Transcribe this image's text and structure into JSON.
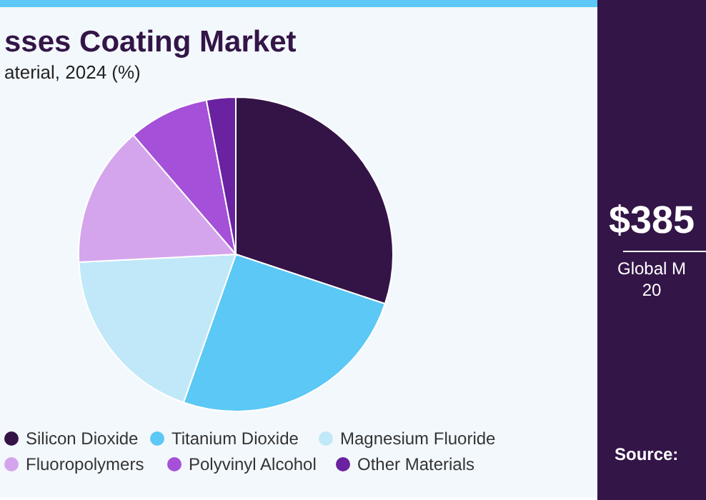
{
  "chart_data": {
    "type": "pie",
    "title": "sses Coating Market",
    "subtitle": "aterial, 2024 (%)",
    "categories": [
      "Silicon Dioxide",
      "Titanium Dioxide",
      "Magnesium Fluoride",
      "Fluoropolymers",
      "Polyvinyl Alcohol",
      "Other Materials"
    ],
    "values": [
      30.1,
      25.3,
      18.8,
      14.5,
      8.3,
      3.0
    ],
    "colors": [
      "#341446",
      "#5bc8f5",
      "#c0e8f8",
      "#d4a5ec",
      "#a550d8",
      "#6a22a0"
    ],
    "legend": "bottom",
    "annotations": [
      "$385",
      "Global M",
      "20",
      "Source:"
    ]
  }
}
